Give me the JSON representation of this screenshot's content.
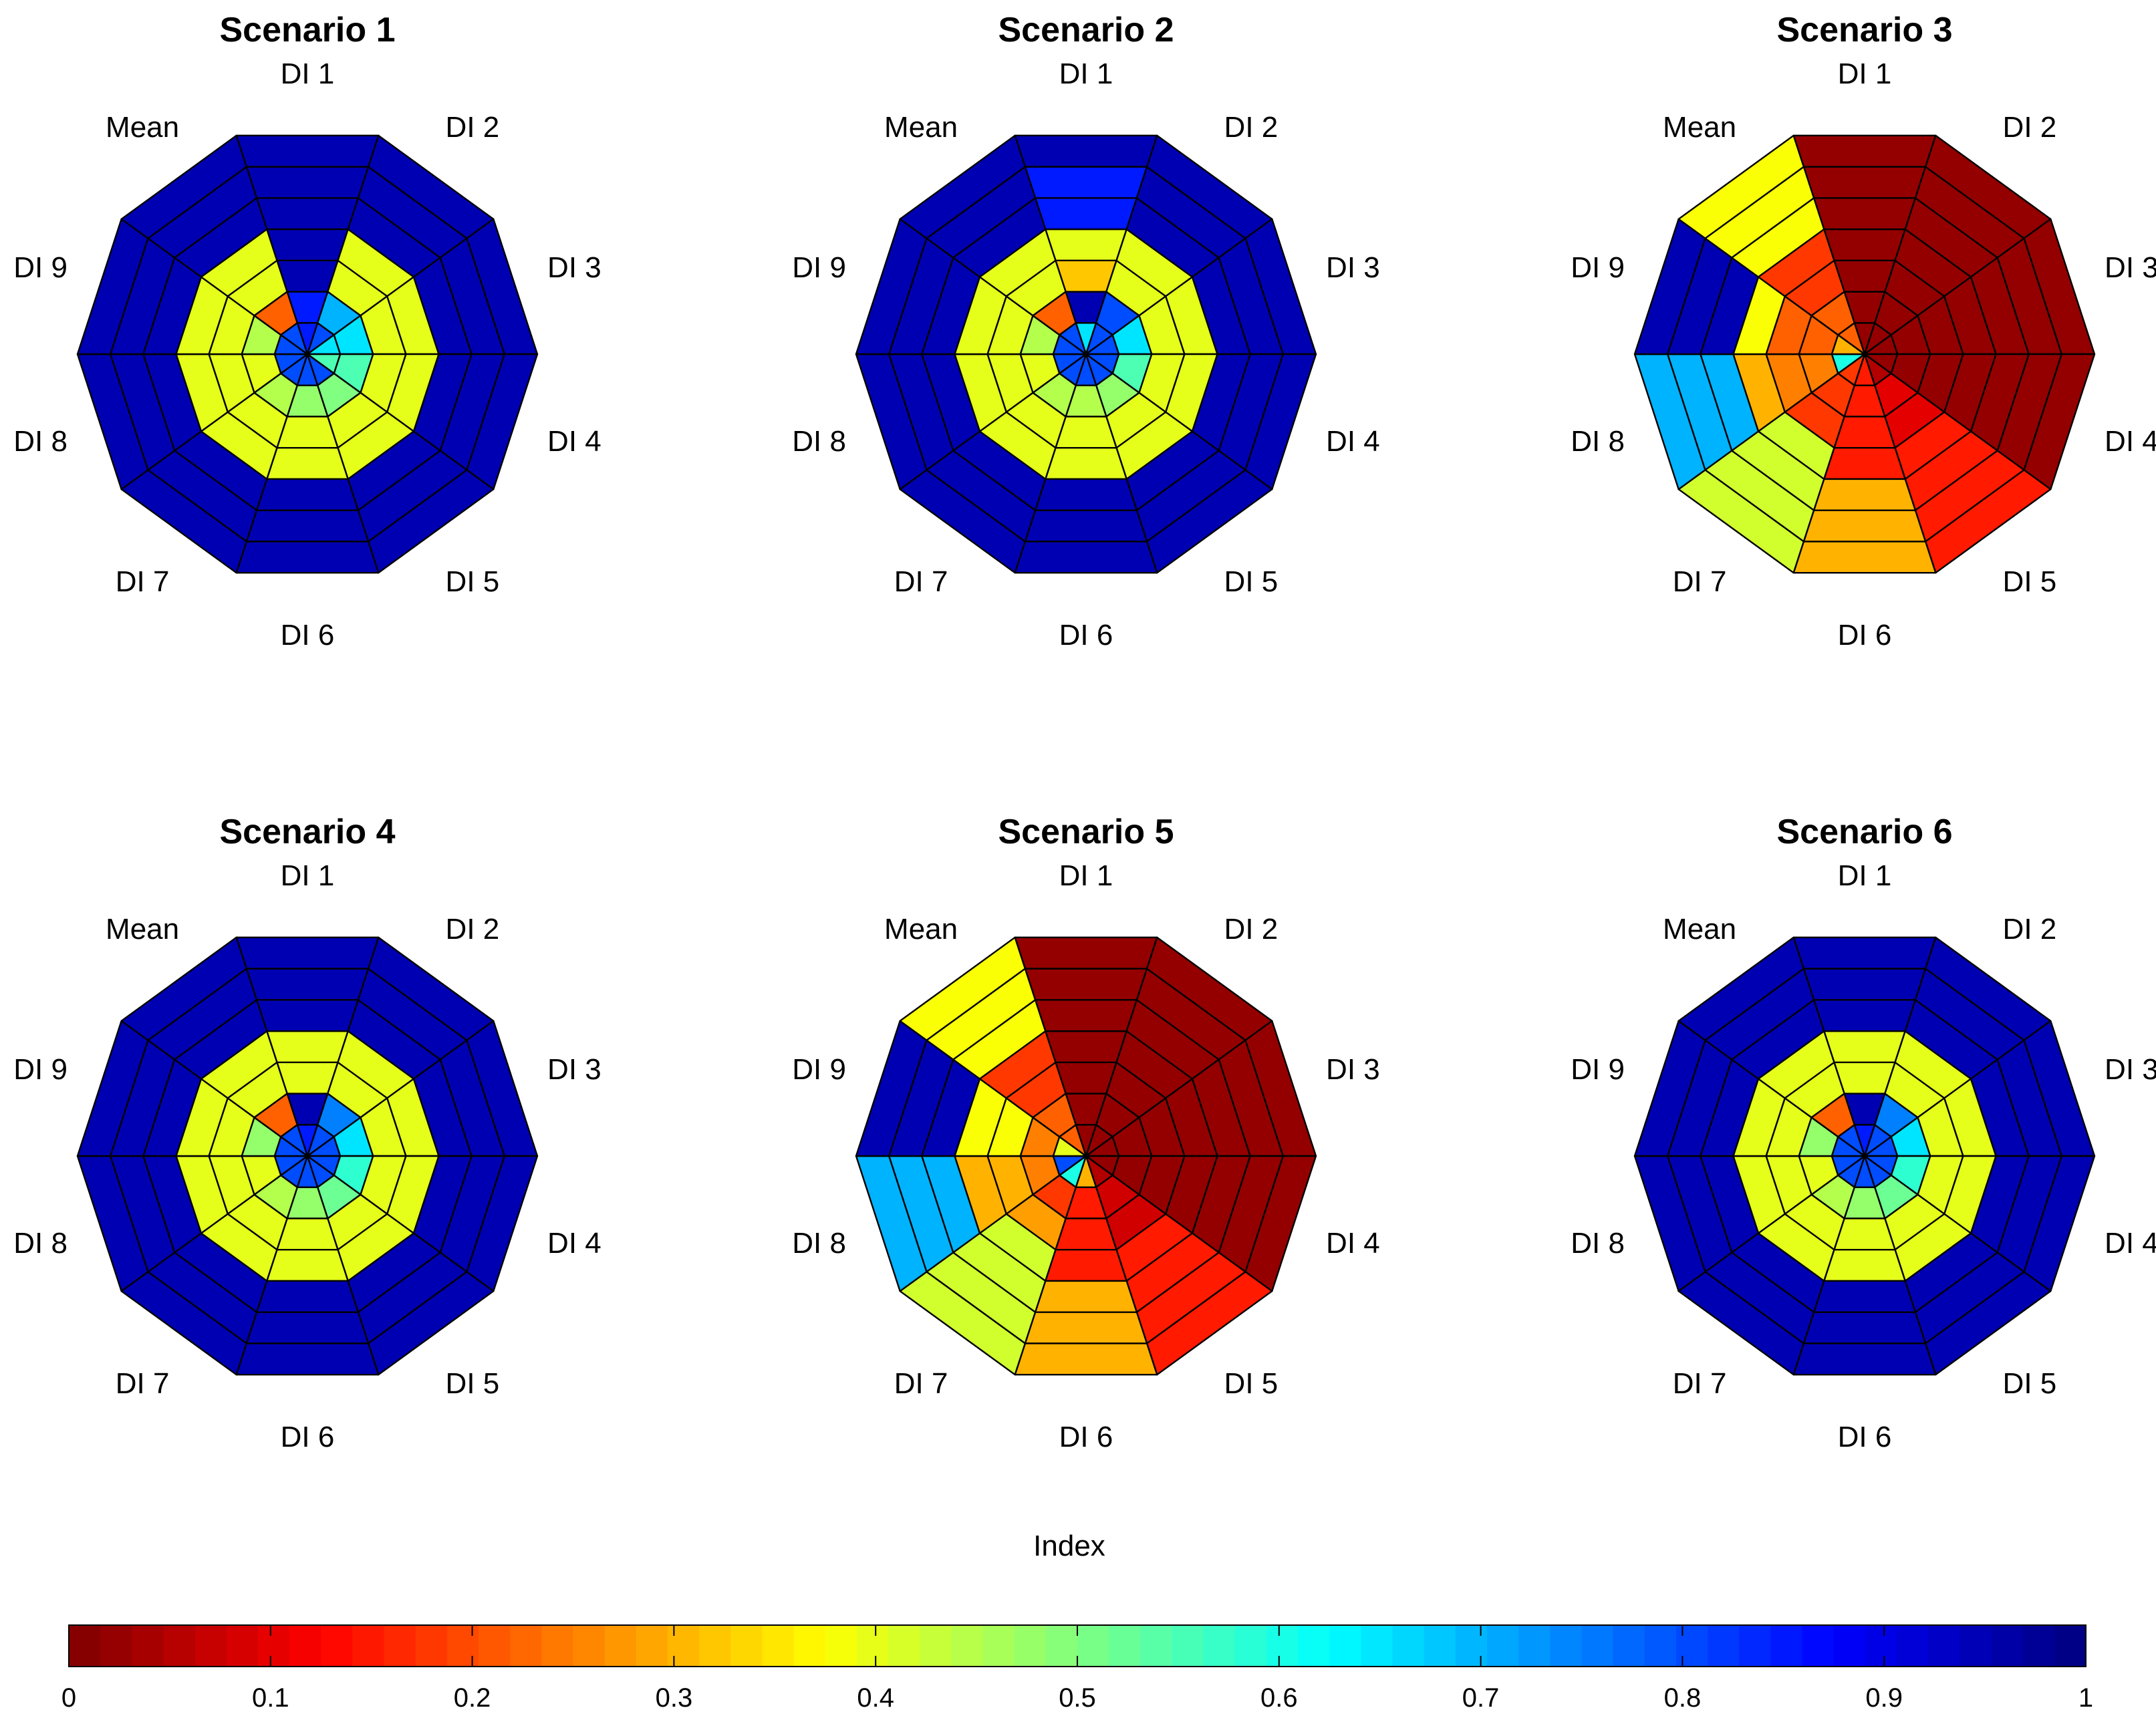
{
  "chart_data": {
    "type": "polar-heatmap",
    "colormap": "jet",
    "sectors": [
      "DI 1",
      "DI 2",
      "DI 3",
      "DI 4",
      "DI 5",
      "DI 6",
      "DI 7",
      "DI 8",
      "DI 9",
      "Mean"
    ],
    "ring_count": 7,
    "ring_order": "inner-to-outer",
    "colorbar": {
      "label": "Index",
      "range": [
        0,
        1
      ],
      "ticks": [
        "0",
        "0.1",
        "0.2",
        "0.3",
        "0.4",
        "0.5",
        "0.6",
        "0.7",
        "0.8",
        "0.9",
        "1"
      ]
    },
    "panels": [
      {
        "title": "Scenario 1",
        "values": [
          [
            0.85,
            0.85,
            0.95,
            0.95,
            0.95,
            0.95,
            0.95
          ],
          [
            0.8,
            0.7,
            0.4,
            0.4,
            0.95,
            0.95,
            0.95
          ],
          [
            0.65,
            0.65,
            0.4,
            0.4,
            0.95,
            0.95,
            0.95
          ],
          [
            0.55,
            0.55,
            0.4,
            0.4,
            0.95,
            0.95,
            0.95
          ],
          [
            0.8,
            0.5,
            0.4,
            0.4,
            0.95,
            0.95,
            0.95
          ],
          [
            0.8,
            0.48,
            0.4,
            0.4,
            0.95,
            0.95,
            0.95
          ],
          [
            0.8,
            0.45,
            0.4,
            0.4,
            0.95,
            0.95,
            0.95
          ],
          [
            0.8,
            0.4,
            0.4,
            0.4,
            0.95,
            0.95,
            0.95
          ],
          [
            0.8,
            0.45,
            0.4,
            0.4,
            0.95,
            0.95,
            0.95
          ],
          [
            0.8,
            0.22,
            0.4,
            0.4,
            0.95,
            0.95,
            0.95
          ]
        ]
      },
      {
        "title": "Scenario 2",
        "values": [
          [
            0.65,
            0.95,
            0.32,
            0.4,
            0.85,
            0.85,
            0.95
          ],
          [
            0.8,
            0.8,
            0.4,
            0.4,
            0.95,
            0.95,
            0.95
          ],
          [
            0.8,
            0.65,
            0.4,
            0.4,
            0.95,
            0.95,
            0.95
          ],
          [
            0.8,
            0.55,
            0.4,
            0.4,
            0.95,
            0.95,
            0.95
          ],
          [
            0.8,
            0.48,
            0.4,
            0.4,
            0.95,
            0.95,
            0.95
          ],
          [
            0.8,
            0.45,
            0.4,
            0.4,
            0.95,
            0.95,
            0.95
          ],
          [
            0.8,
            0.45,
            0.4,
            0.4,
            0.95,
            0.95,
            0.95
          ],
          [
            0.8,
            0.4,
            0.4,
            0.4,
            0.95,
            0.95,
            0.95
          ],
          [
            0.8,
            0.45,
            0.4,
            0.4,
            0.95,
            0.95,
            0.95
          ],
          [
            0.8,
            0.22,
            0.4,
            0.4,
            0.95,
            0.95,
            0.95
          ]
        ]
      },
      {
        "title": "Scenario 3",
        "values": [
          [
            0.02,
            0.02,
            0.02,
            0.02,
            0.02,
            0.02,
            0.02
          ],
          [
            0.02,
            0.02,
            0.02,
            0.02,
            0.02,
            0.02,
            0.02
          ],
          [
            0.02,
            0.02,
            0.02,
            0.02,
            0.02,
            0.02,
            0.02
          ],
          [
            0.02,
            0.02,
            0.02,
            0.02,
            0.02,
            0.02,
            0.02
          ],
          [
            0.05,
            0.1,
            0.1,
            0.15,
            0.15,
            0.15,
            0.15
          ],
          [
            0.15,
            0.15,
            0.15,
            0.15,
            0.3,
            0.3,
            0.3
          ],
          [
            0.18,
            0.18,
            0.18,
            0.42,
            0.42,
            0.42,
            0.42
          ],
          [
            0.6,
            0.25,
            0.25,
            0.3,
            0.7,
            0.7,
            0.7
          ],
          [
            0.3,
            0.22,
            0.22,
            0.38,
            0.95,
            0.95,
            0.95
          ],
          [
            0.22,
            0.22,
            0.18,
            0.18,
            0.38,
            0.38,
            0.38
          ]
        ]
      },
      {
        "title": "Scenario 4",
        "values": [
          [
            0.85,
            0.95,
            0.4,
            0.4,
            0.95,
            0.95,
            0.95
          ],
          [
            0.8,
            0.75,
            0.4,
            0.4,
            0.95,
            0.95,
            0.95
          ],
          [
            0.8,
            0.65,
            0.4,
            0.4,
            0.95,
            0.95,
            0.95
          ],
          [
            0.8,
            0.58,
            0.4,
            0.4,
            0.95,
            0.95,
            0.95
          ],
          [
            0.8,
            0.52,
            0.4,
            0.4,
            0.95,
            0.95,
            0.95
          ],
          [
            0.8,
            0.48,
            0.4,
            0.4,
            0.95,
            0.95,
            0.95
          ],
          [
            0.8,
            0.45,
            0.4,
            0.4,
            0.95,
            0.95,
            0.95
          ],
          [
            0.8,
            0.4,
            0.4,
            0.4,
            0.95,
            0.95,
            0.95
          ],
          [
            0.8,
            0.48,
            0.4,
            0.4,
            0.95,
            0.95,
            0.95
          ],
          [
            0.8,
            0.22,
            0.4,
            0.4,
            0.95,
            0.95,
            0.95
          ]
        ]
      },
      {
        "title": "Scenario 5",
        "values": [
          [
            0.02,
            0.02,
            0.02,
            0.02,
            0.02,
            0.02,
            0.02
          ],
          [
            0.02,
            0.02,
            0.02,
            0.02,
            0.02,
            0.02,
            0.02
          ],
          [
            0.02,
            0.02,
            0.02,
            0.02,
            0.02,
            0.02,
            0.02
          ],
          [
            0.02,
            0.02,
            0.02,
            0.02,
            0.02,
            0.02,
            0.02
          ],
          [
            0.05,
            0.08,
            0.08,
            0.15,
            0.15,
            0.15,
            0.15
          ],
          [
            0.3,
            0.15,
            0.15,
            0.15,
            0.3,
            0.3,
            0.3
          ],
          [
            0.6,
            0.18,
            0.28,
            0.42,
            0.42,
            0.42,
            0.42
          ],
          [
            0.8,
            0.25,
            0.3,
            0.3,
            0.7,
            0.7,
            0.7
          ],
          [
            0.4,
            0.25,
            0.38,
            0.38,
            0.95,
            0.95,
            0.95
          ],
          [
            0.22,
            0.22,
            0.18,
            0.18,
            0.38,
            0.38,
            0.38
          ]
        ]
      },
      {
        "title": "Scenario 6",
        "values": [
          [
            0.85,
            0.95,
            0.4,
            0.4,
            0.95,
            0.95,
            0.95
          ],
          [
            0.8,
            0.75,
            0.4,
            0.4,
            0.95,
            0.95,
            0.95
          ],
          [
            0.8,
            0.65,
            0.4,
            0.4,
            0.95,
            0.95,
            0.95
          ],
          [
            0.8,
            0.58,
            0.4,
            0.4,
            0.95,
            0.95,
            0.95
          ],
          [
            0.8,
            0.52,
            0.4,
            0.4,
            0.95,
            0.95,
            0.95
          ],
          [
            0.8,
            0.48,
            0.4,
            0.4,
            0.95,
            0.95,
            0.95
          ],
          [
            0.8,
            0.45,
            0.4,
            0.4,
            0.95,
            0.95,
            0.95
          ],
          [
            0.8,
            0.4,
            0.4,
            0.4,
            0.95,
            0.95,
            0.95
          ],
          [
            0.8,
            0.48,
            0.4,
            0.4,
            0.95,
            0.95,
            0.95
          ],
          [
            0.8,
            0.22,
            0.4,
            0.4,
            0.95,
            0.95,
            0.95
          ]
        ]
      }
    ]
  }
}
